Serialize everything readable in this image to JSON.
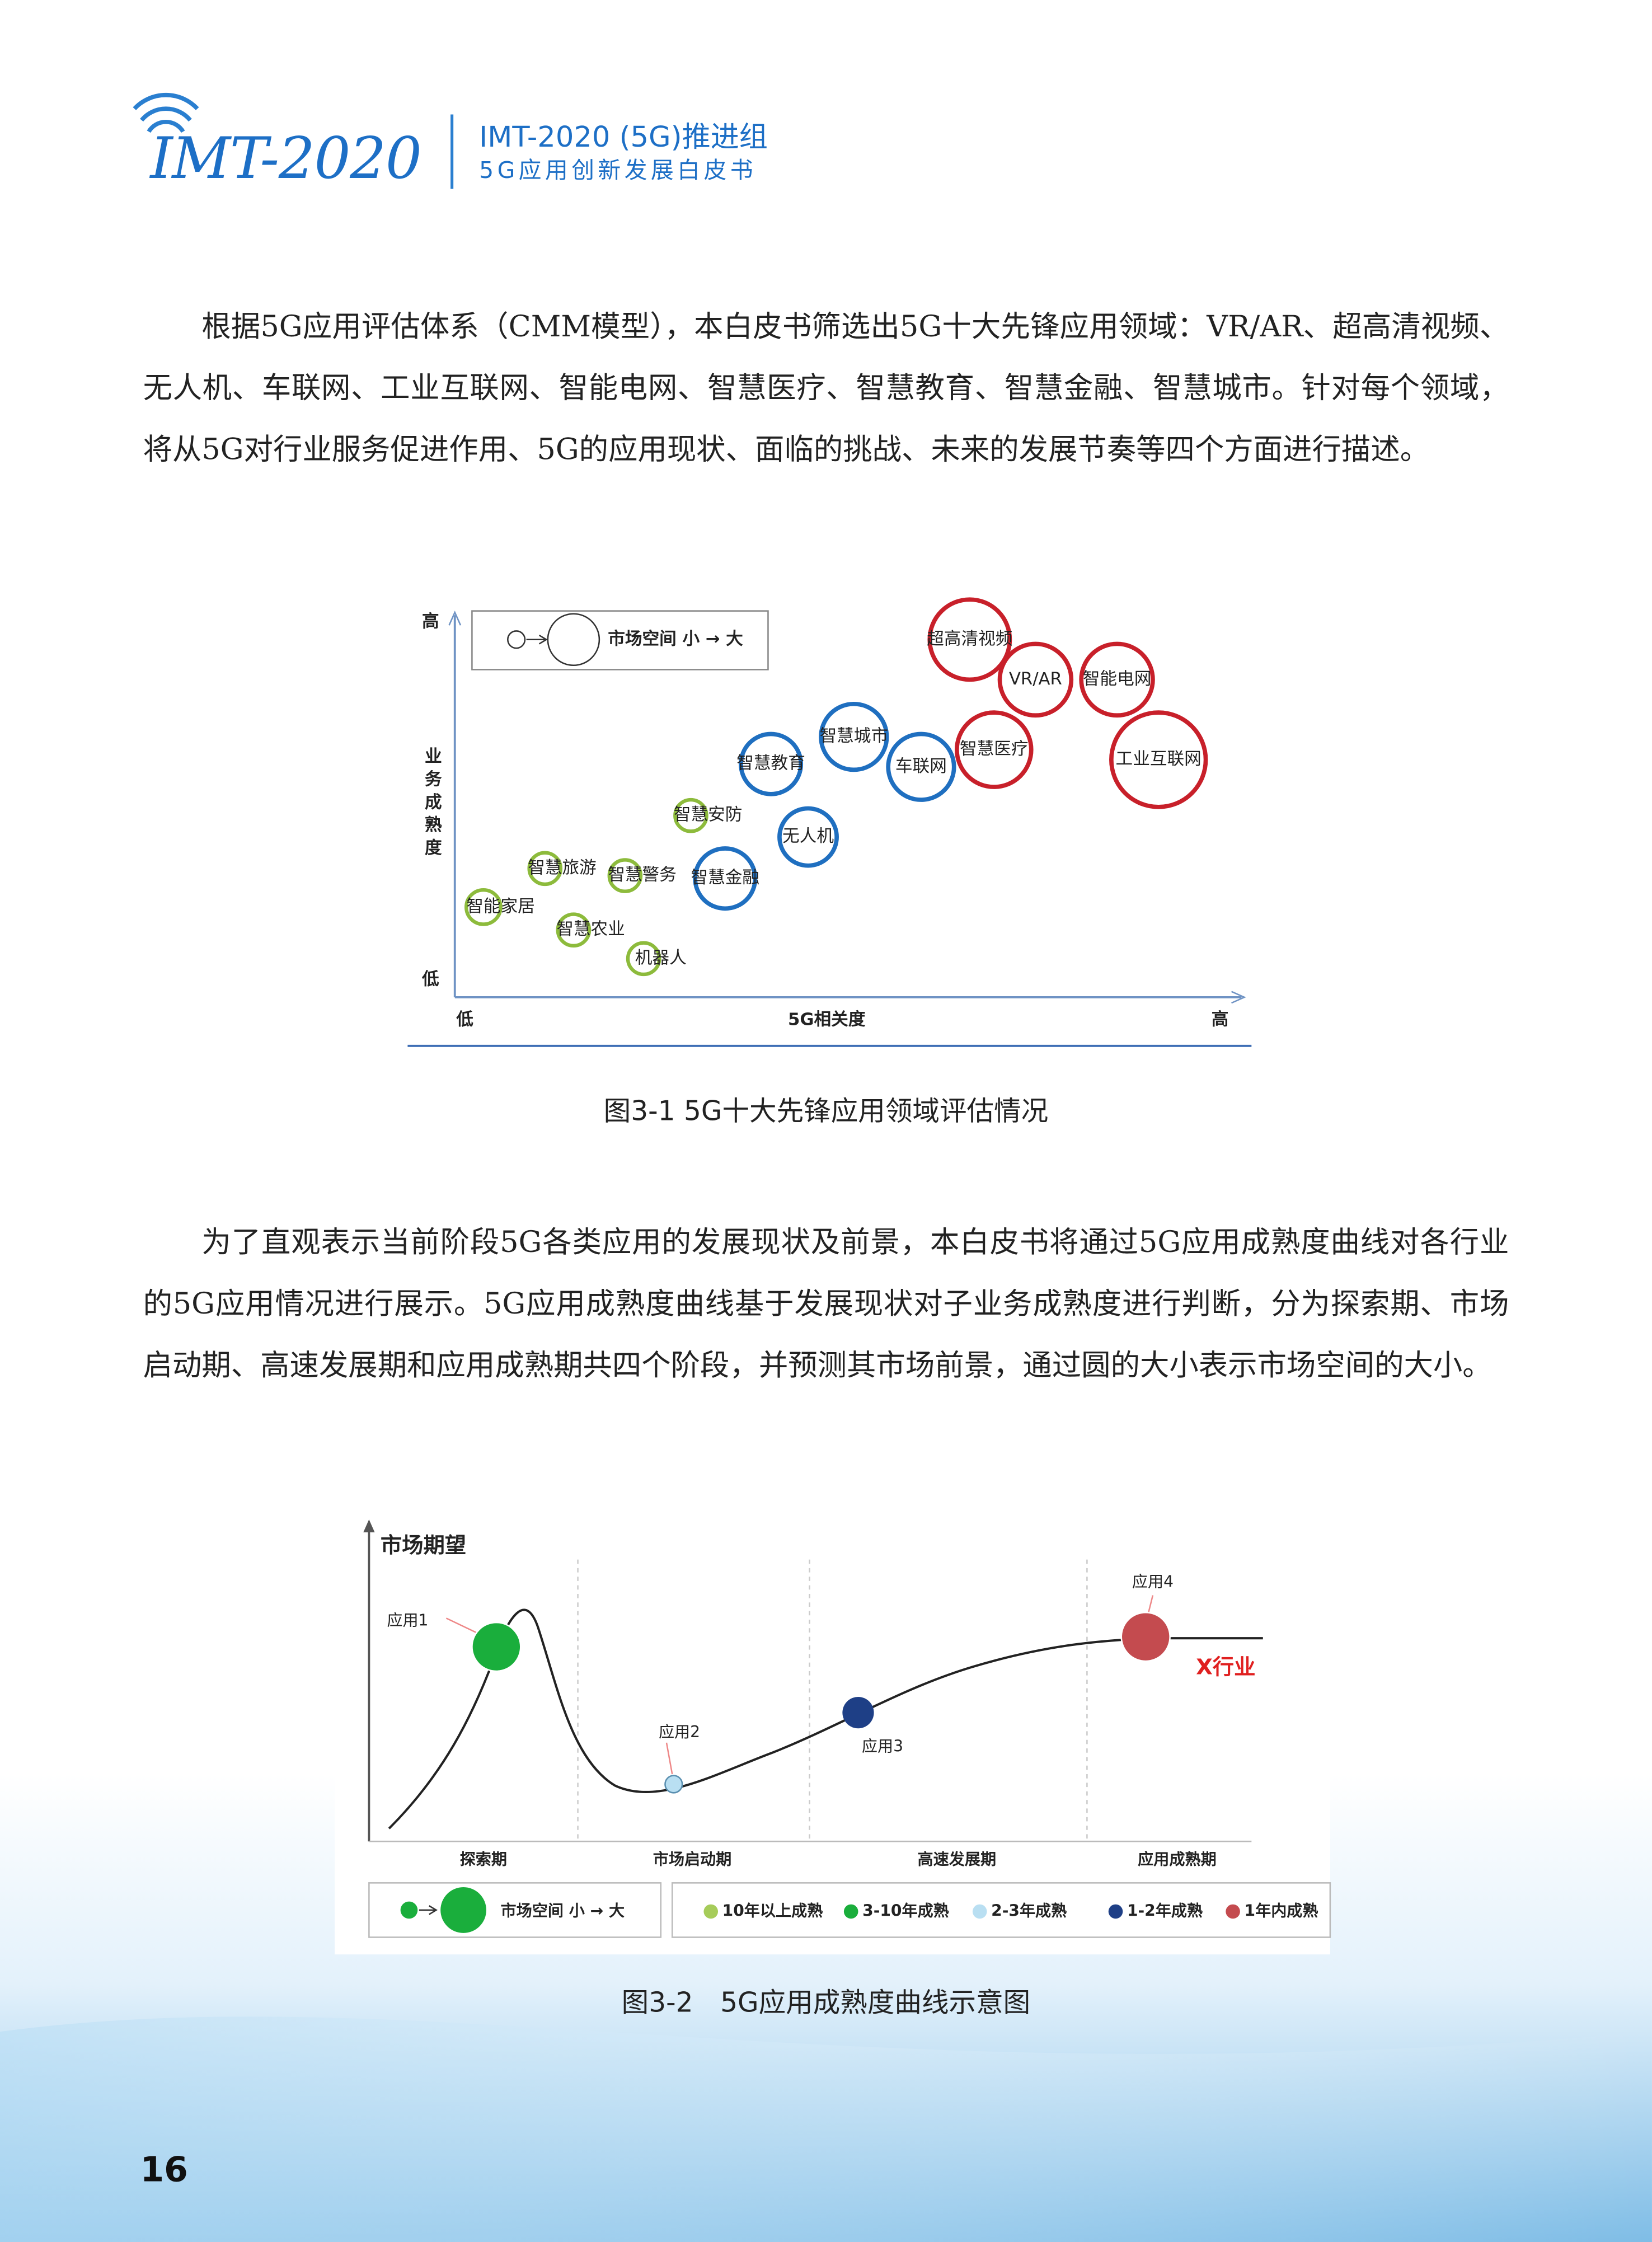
{
  "header": {
    "logo": "IMT-2020",
    "title": "IMT-2020 (5G)推进组",
    "subtitle": "5G应用创新发展白皮书"
  },
  "paragraphs": [
    "根据5G应用评估体系（CMM模型），本白皮书筛选出5G十大先锋应用领域：VR/AR、超高清视频、无人机、车联网、工业互联网、智能电网、智慧医疗、智慧教育、智慧金融、智慧城市。针对每个领域，将从5G对行业服务促进作用、5G的应用现状、面临的挑战、未来的发展节奏等四个方面进行描述。",
    "为了直观表示当前阶段5G各类应用的发展现状及前景，本白皮书将通过5G应用成熟度曲线对各行业的5G应用情况进行展示。5G应用成熟度曲线基于发展现状对子业务成熟度进行判断，分为探索期、市场启动期、高速发展期和应用成熟期共四个阶段，并预测其市场前景，通过圆的大小表示市场空间的大小。"
  ],
  "figure1": {
    "caption": "图3-1 5G十大先锋应用领域评估情况",
    "y_axis_label": "业务成熟度",
    "y_high": "高",
    "y_low": "低",
    "x_axis_label": "5G相关度",
    "x_low": "低",
    "x_high": "高",
    "legend": "市场空间 小 → 大",
    "nodes": [
      "超高清视频",
      "VR/AR",
      "智能电网",
      "智慧医疗",
      "工业互联网",
      "智慧城市",
      "智慧教育",
      "车联网",
      "无人机",
      "智慧金融",
      "智慧安防",
      "智慧旅游",
      "智慧警务",
      "智能家居",
      "智慧农业",
      "机器人"
    ]
  },
  "figure2": {
    "caption": "图3-2　5G应用成熟度曲线示意图",
    "y_axis_label": "市场期望",
    "phases": [
      "探索期",
      "市场启动期",
      "高速发展期",
      "应用成熟期"
    ],
    "apps": [
      "应用1",
      "应用2",
      "应用3",
      "应用4"
    ],
    "industry_label": "X行业",
    "size_legend": "市场空间 小 → 大",
    "maturity_legend": [
      "10年以上成熟",
      "3-10年成熟",
      "2-3年成熟",
      "1-2年成熟",
      "1年内成熟"
    ]
  },
  "page_number": "16"
}
